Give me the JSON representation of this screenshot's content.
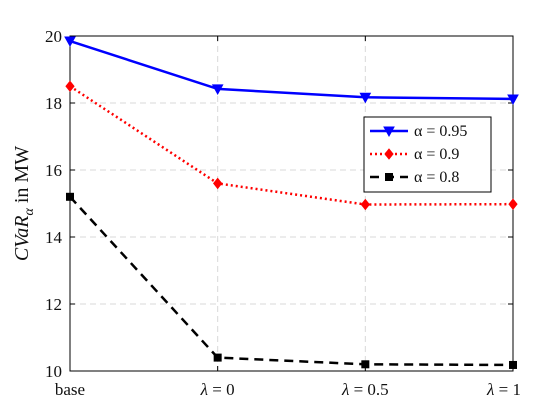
{
  "chart_data": {
    "type": "line",
    "categories": [
      "base",
      "λ = 0",
      "λ = 0.5",
      "λ = 1"
    ],
    "series": [
      {
        "name": "α = 0.95",
        "values": [
          19.85,
          18.42,
          18.17,
          18.12
        ],
        "color": "#0000ff",
        "line_style": "solid",
        "marker": "triangle-down"
      },
      {
        "name": "α = 0.9",
        "values": [
          18.5,
          15.6,
          14.97,
          14.98
        ],
        "color": "#ff0000",
        "line_style": "dotted",
        "marker": "diamond"
      },
      {
        "name": "α = 0.8",
        "values": [
          15.2,
          10.4,
          10.2,
          10.18
        ],
        "color": "#000000",
        "line_style": "dashed",
        "marker": "square"
      }
    ],
    "title": "",
    "xlabel": "",
    "ylabel": "CVaRα in MW",
    "ylim": [
      10,
      20
    ],
    "yticks": [
      10,
      12,
      14,
      16,
      18,
      20
    ],
    "grid": true,
    "legend_position": "right-middle"
  }
}
